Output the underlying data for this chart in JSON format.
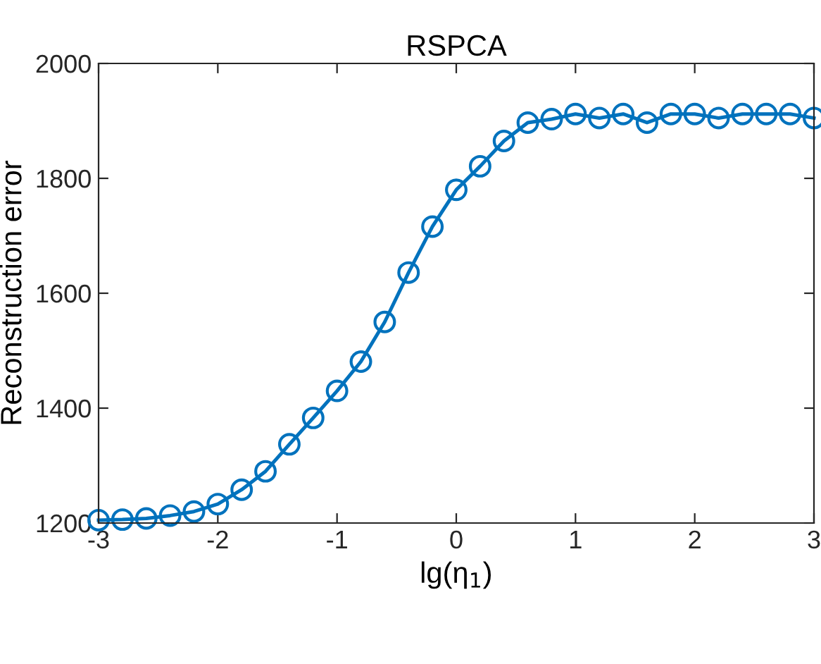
{
  "chart_data": {
    "type": "line",
    "title": "RSPCA",
    "xlabel": "lg(η$_{1}$)",
    "ylabel": "Reconstruction error",
    "x": [
      -3,
      -2.8,
      -2.6,
      -2.4,
      -2.2,
      -2,
      -1.8,
      -1.6,
      -1.4,
      -1.2,
      -1,
      -0.8,
      -0.6,
      -0.4,
      -0.2,
      0,
      0.2,
      0.4,
      0.6,
      0.8,
      1,
      1.2,
      1.4,
      1.6,
      1.8,
      2,
      2.2,
      2.4,
      2.6,
      2.8,
      3
    ],
    "series": [
      {
        "color": "#0072bd",
        "values": [
          1205,
          1206,
          1208,
          1213,
          1220,
          1233,
          1258,
          1290,
          1337,
          1383,
          1430,
          1481,
          1550,
          1636,
          1716,
          1780,
          1821,
          1865,
          1897,
          1903,
          1912,
          1905,
          1912,
          1897,
          1912,
          1912,
          1905,
          1912,
          1912,
          1912,
          1905
        ]
      }
    ],
    "xlim": [
      -3,
      3
    ],
    "ylim": [
      1200,
      2000
    ],
    "xticks": [
      -3,
      -2,
      -1,
      0,
      1,
      2,
      3
    ],
    "yticks": [
      1200,
      1400,
      1600,
      1800,
      2000
    ],
    "grid": false,
    "marker": "circle",
    "line_style": "solid",
    "legend": false
  }
}
